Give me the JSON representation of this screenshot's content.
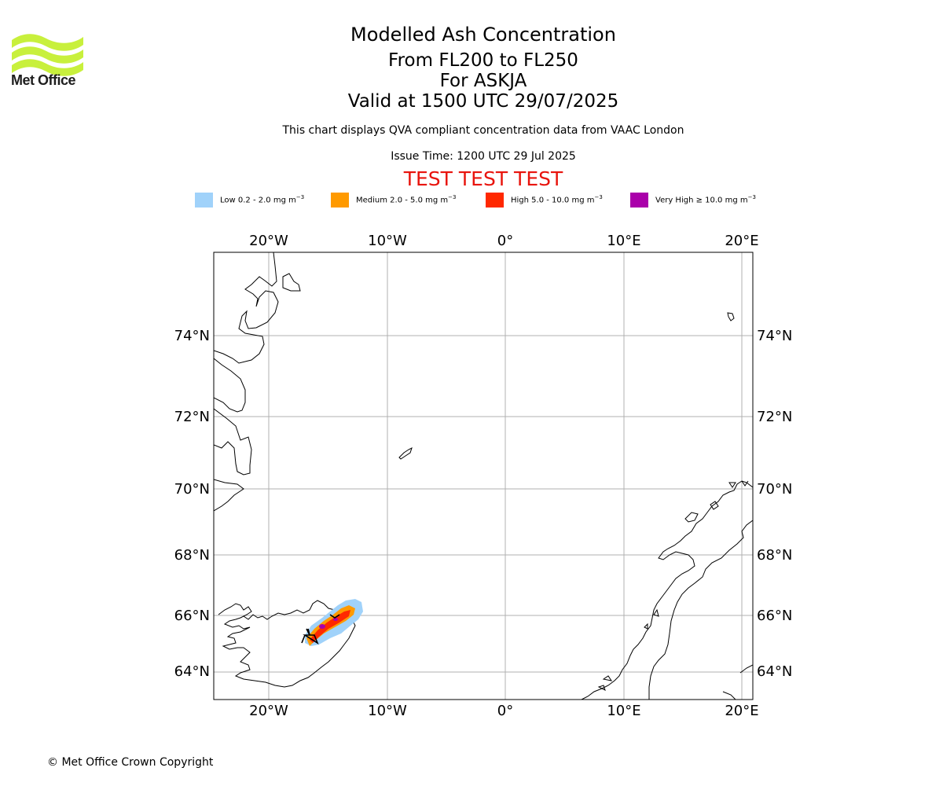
{
  "logo": {
    "text": "Met Office",
    "color": "#c8f03c"
  },
  "header": {
    "title": "Modelled Ash Concentration",
    "level_range": "From FL200 to FL250",
    "volcano": "For ASKJA",
    "valid_time": "Valid at 1500 UTC 29/07/2025",
    "description": "This chart displays QVA compliant concentration data from VAAC London",
    "issue_time": "Issue Time: 1200 UTC 29 Jul 2025",
    "test_banner": "TEST TEST TEST",
    "test_banner_color": "#e8140d"
  },
  "legend": [
    {
      "label": "Low 0.2 - 2.0 mg m",
      "exp": "−3",
      "color": "#a0d2fa"
    },
    {
      "label": "Medium 2.0 - 5.0 mg m",
      "exp": "−3",
      "color": "#ff9a00"
    },
    {
      "label": "High 5.0 - 10.0 mg m",
      "exp": "−3",
      "color": "#ff2800"
    },
    {
      "label": "Very High ≥ 10.0 mg m",
      "exp": "−3",
      "color": "#aa00aa"
    }
  ],
  "map": {
    "lon_ticks": [
      "20°W",
      "10°W",
      "0°",
      "10°E",
      "20°E"
    ],
    "lat_ticks": [
      "74°N",
      "72°N",
      "70°N",
      "68°N",
      "66°N",
      "64°N"
    ],
    "lon_range": [
      -24.7,
      21
    ],
    "lat_range": [
      63.1,
      76.4
    ],
    "gridlines": true,
    "volcano_marker": "Askja",
    "ash_plume": "elongated plume from Askja extending north-east across Iceland"
  },
  "footer": {
    "copyright": "© Met Office Crown Copyright"
  }
}
